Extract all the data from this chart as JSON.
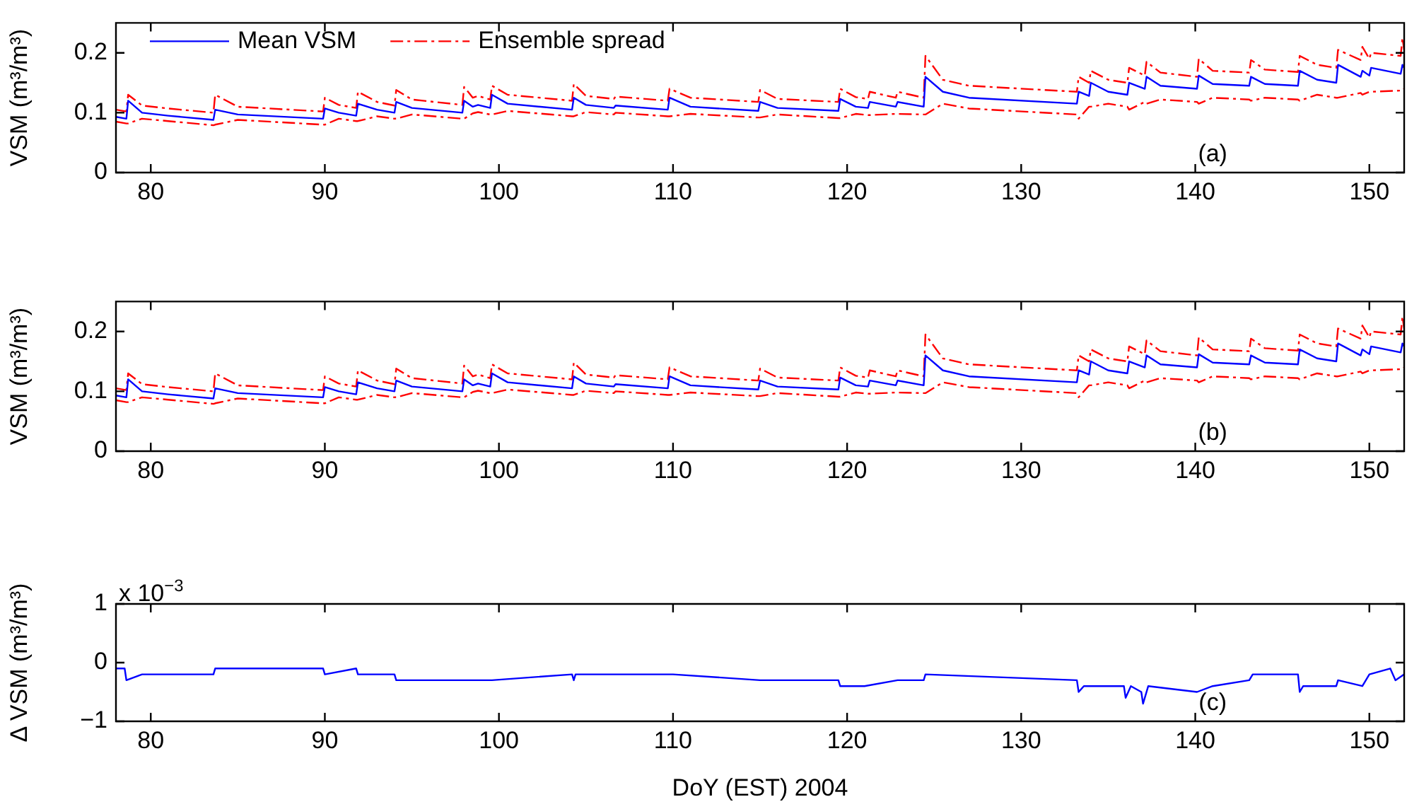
{
  "chart_data": [
    {
      "type": "line",
      "ylabel": "VSM (m³/m³)",
      "annotations": [
        "(a)"
      ],
      "legend": "top left",
      "grid": false,
      "marker": "none",
      "xlim": [
        78,
        152
      ],
      "xticks": [
        80,
        90,
        100,
        110,
        120,
        130,
        140,
        150
      ],
      "ylim": [
        0,
        0.25
      ],
      "yticks": [
        0,
        0.1,
        0.2
      ],
      "x": [
        78.0,
        78.6,
        78.7,
        79.5,
        81.0,
        83.6,
        83.7,
        85.0,
        89.9,
        90.0,
        90.8,
        91.8,
        91.9,
        93.0,
        94.0,
        94.1,
        95.0,
        97.9,
        98.0,
        98.5,
        98.8,
        99.5,
        99.6,
        100.5,
        104.2,
        104.3,
        105.0,
        106.6,
        106.7,
        109.7,
        109.8,
        111.0,
        114.9,
        115.0,
        116.0,
        119.5,
        119.6,
        120.5,
        121.2,
        121.3,
        122.8,
        122.9,
        124.4,
        124.5,
        125.5,
        127.0,
        133.2,
        133.3,
        133.9,
        134.0,
        135.0,
        136.1,
        136.2,
        137.1,
        137.2,
        138.0,
        140.1,
        140.2,
        141.0,
        143.1,
        143.2,
        144.0,
        145.9,
        146.0,
        147.0,
        148.1,
        148.2,
        149.5,
        149.6,
        150.0,
        150.1,
        151.8,
        151.9,
        152.0
      ],
      "series": [
        {
          "name": "Mean VSM",
          "color": "#0000ff",
          "line_style": "solid",
          "values": [
            0.093,
            0.09,
            0.12,
            0.1,
            0.095,
            0.088,
            0.105,
            0.097,
            0.09,
            0.107,
            0.1,
            0.095,
            0.115,
            0.105,
            0.1,
            0.118,
            0.108,
            0.1,
            0.12,
            0.11,
            0.113,
            0.108,
            0.13,
            0.115,
            0.105,
            0.125,
            0.113,
            0.108,
            0.112,
            0.105,
            0.125,
            0.11,
            0.103,
            0.118,
            0.108,
            0.103,
            0.123,
            0.11,
            0.108,
            0.118,
            0.11,
            0.118,
            0.11,
            0.16,
            0.135,
            0.125,
            0.115,
            0.135,
            0.128,
            0.15,
            0.135,
            0.13,
            0.15,
            0.14,
            0.16,
            0.145,
            0.14,
            0.162,
            0.148,
            0.145,
            0.16,
            0.148,
            0.145,
            0.17,
            0.155,
            0.15,
            0.18,
            0.16,
            0.17,
            0.162,
            0.175,
            0.165,
            0.18,
            0.175
          ]
        },
        {
          "name": "Ensemble spread",
          "color": "#ff0000",
          "line_style": "dashed",
          "values": [
            0.105,
            0.102,
            0.13,
            0.112,
            0.107,
            0.1,
            0.13,
            0.11,
            0.102,
            0.125,
            0.113,
            0.108,
            0.135,
            0.118,
            0.112,
            0.138,
            0.122,
            0.113,
            0.143,
            0.125,
            0.128,
            0.122,
            0.145,
            0.13,
            0.12,
            0.148,
            0.128,
            0.123,
            0.127,
            0.12,
            0.14,
            0.125,
            0.118,
            0.138,
            0.123,
            0.118,
            0.14,
            0.126,
            0.123,
            0.135,
            0.125,
            0.135,
            0.125,
            0.195,
            0.155,
            0.145,
            0.135,
            0.16,
            0.15,
            0.17,
            0.155,
            0.15,
            0.175,
            0.162,
            0.185,
            0.167,
            0.16,
            0.19,
            0.17,
            0.167,
            0.188,
            0.172,
            0.168,
            0.195,
            0.18,
            0.175,
            0.205,
            0.188,
            0.21,
            0.19,
            0.2,
            0.195,
            0.225,
            0.205
          ]
        },
        {
          "color": "#ff0000",
          "line_style": "dashed",
          "values": [
            0.085,
            0.082,
            0.082,
            0.09,
            0.086,
            0.079,
            0.08,
            0.088,
            0.08,
            0.08,
            0.09,
            0.086,
            0.086,
            0.094,
            0.09,
            0.09,
            0.097,
            0.09,
            0.09,
            0.099,
            0.101,
            0.097,
            0.097,
            0.103,
            0.094,
            0.094,
            0.101,
            0.097,
            0.1,
            0.094,
            0.094,
            0.098,
            0.092,
            0.092,
            0.097,
            0.091,
            0.091,
            0.098,
            0.096,
            0.096,
            0.098,
            0.098,
            0.097,
            0.097,
            0.115,
            0.107,
            0.097,
            0.09,
            0.11,
            0.11,
            0.115,
            0.11,
            0.105,
            0.118,
            0.115,
            0.122,
            0.118,
            0.115,
            0.125,
            0.122,
            0.12,
            0.125,
            0.122,
            0.12,
            0.13,
            0.125,
            0.125,
            0.133,
            0.13,
            0.135,
            0.135,
            0.137,
            0.137,
            0.14
          ]
        }
      ]
    },
    {
      "type": "line",
      "ylabel": "VSM (m³/m³)",
      "annotations": [
        "(b)"
      ],
      "grid": false,
      "marker": "none",
      "xlim": [
        78,
        152
      ],
      "xticks": [
        80,
        90,
        100,
        110,
        120,
        130,
        140,
        150
      ],
      "ylim": [
        0,
        0.25
      ],
      "yticks": [
        0,
        0.1,
        0.2
      ],
      "x": [
        78.0,
        78.6,
        78.7,
        79.5,
        81.0,
        83.6,
        83.7,
        85.0,
        89.9,
        90.0,
        90.8,
        91.8,
        91.9,
        93.0,
        94.0,
        94.1,
        95.0,
        97.9,
        98.0,
        98.5,
        98.8,
        99.5,
        99.6,
        100.5,
        104.2,
        104.3,
        105.0,
        106.6,
        106.7,
        109.7,
        109.8,
        111.0,
        114.9,
        115.0,
        116.0,
        119.5,
        119.6,
        120.5,
        121.2,
        121.3,
        122.8,
        122.9,
        124.4,
        124.5,
        125.5,
        127.0,
        133.2,
        133.3,
        133.9,
        134.0,
        135.0,
        136.1,
        136.2,
        137.1,
        137.2,
        138.0,
        140.1,
        140.2,
        141.0,
        143.1,
        143.2,
        144.0,
        145.9,
        146.0,
        147.0,
        148.1,
        148.2,
        149.5,
        149.6,
        150.0,
        150.1,
        151.8,
        151.9,
        152.0
      ],
      "series": [
        {
          "color": "#0000ff",
          "line_style": "solid",
          "values": [
            0.093,
            0.09,
            0.12,
            0.1,
            0.095,
            0.088,
            0.105,
            0.097,
            0.09,
            0.107,
            0.1,
            0.095,
            0.115,
            0.105,
            0.1,
            0.118,
            0.108,
            0.1,
            0.12,
            0.11,
            0.113,
            0.108,
            0.13,
            0.115,
            0.105,
            0.125,
            0.113,
            0.108,
            0.112,
            0.105,
            0.125,
            0.11,
            0.103,
            0.118,
            0.108,
            0.103,
            0.123,
            0.11,
            0.108,
            0.118,
            0.11,
            0.118,
            0.11,
            0.16,
            0.135,
            0.125,
            0.115,
            0.135,
            0.128,
            0.15,
            0.135,
            0.13,
            0.15,
            0.14,
            0.16,
            0.145,
            0.14,
            0.162,
            0.148,
            0.145,
            0.16,
            0.148,
            0.145,
            0.17,
            0.155,
            0.15,
            0.18,
            0.16,
            0.17,
            0.162,
            0.175,
            0.165,
            0.18,
            0.175
          ]
        },
        {
          "color": "#ff0000",
          "line_style": "dashed",
          "values": [
            0.105,
            0.102,
            0.13,
            0.112,
            0.107,
            0.1,
            0.13,
            0.11,
            0.102,
            0.125,
            0.113,
            0.108,
            0.135,
            0.118,
            0.112,
            0.138,
            0.122,
            0.113,
            0.143,
            0.125,
            0.128,
            0.122,
            0.145,
            0.13,
            0.12,
            0.148,
            0.128,
            0.123,
            0.127,
            0.12,
            0.14,
            0.125,
            0.118,
            0.138,
            0.123,
            0.118,
            0.14,
            0.126,
            0.123,
            0.135,
            0.125,
            0.135,
            0.125,
            0.195,
            0.155,
            0.145,
            0.135,
            0.16,
            0.15,
            0.17,
            0.155,
            0.15,
            0.175,
            0.162,
            0.185,
            0.167,
            0.16,
            0.19,
            0.17,
            0.167,
            0.188,
            0.172,
            0.168,
            0.195,
            0.18,
            0.175,
            0.205,
            0.188,
            0.21,
            0.19,
            0.2,
            0.195,
            0.225,
            0.205
          ]
        },
        {
          "color": "#ff0000",
          "line_style": "dashed",
          "values": [
            0.085,
            0.082,
            0.082,
            0.09,
            0.086,
            0.079,
            0.08,
            0.088,
            0.08,
            0.08,
            0.09,
            0.086,
            0.086,
            0.094,
            0.09,
            0.09,
            0.097,
            0.09,
            0.09,
            0.099,
            0.101,
            0.097,
            0.097,
            0.103,
            0.094,
            0.094,
            0.101,
            0.097,
            0.1,
            0.094,
            0.094,
            0.098,
            0.092,
            0.092,
            0.097,
            0.091,
            0.091,
            0.098,
            0.096,
            0.096,
            0.098,
            0.098,
            0.097,
            0.097,
            0.115,
            0.107,
            0.097,
            0.09,
            0.11,
            0.11,
            0.115,
            0.11,
            0.105,
            0.118,
            0.115,
            0.122,
            0.118,
            0.115,
            0.125,
            0.122,
            0.12,
            0.125,
            0.122,
            0.12,
            0.13,
            0.125,
            0.125,
            0.133,
            0.13,
            0.135,
            0.135,
            0.137,
            0.137,
            0.14
          ]
        }
      ]
    },
    {
      "type": "line",
      "ylabel": "Δ VSM (m³/m³)",
      "xlabel": "DoY (EST) 2004",
      "annotations": [
        "x 10$^{−3}$",
        "(c)"
      ],
      "grid": false,
      "marker": "none",
      "xlim": [
        78,
        152
      ],
      "xticks": [
        80,
        90,
        100,
        110,
        120,
        130,
        140,
        150
      ],
      "ylim": [
        -1,
        1
      ],
      "yticks": [
        {
          "value": -1,
          "label": "−1"
        },
        0,
        1
      ],
      "x": [
        78.0,
        78.5,
        78.6,
        79.5,
        81.0,
        83.6,
        83.7,
        89.9,
        90.0,
        91.8,
        91.9,
        94.0,
        94.1,
        98.0,
        98.1,
        99.5,
        99.6,
        104.2,
        104.3,
        104.4,
        110.0,
        115.0,
        119.5,
        119.6,
        121.0,
        122.9,
        124.4,
        124.5,
        133.2,
        133.3,
        133.6,
        135.9,
        136.0,
        136.3,
        136.9,
        137.0,
        137.3,
        140.1,
        141.0,
        143.1,
        143.3,
        145.9,
        146.0,
        146.2,
        148.1,
        148.2,
        149.6,
        150.0,
        151.2,
        151.5,
        152.0
      ],
      "series": [
        {
          "color": "#0000ff",
          "line_style": "solid",
          "values": [
            -0.1,
            -0.1,
            -0.3,
            -0.2,
            -0.2,
            -0.2,
            -0.1,
            -0.1,
            -0.2,
            -0.1,
            -0.2,
            -0.2,
            -0.3,
            -0.3,
            -0.3,
            -0.3,
            -0.3,
            -0.2,
            -0.3,
            -0.2,
            -0.2,
            -0.3,
            -0.3,
            -0.4,
            -0.4,
            -0.3,
            -0.3,
            -0.2,
            -0.3,
            -0.5,
            -0.4,
            -0.4,
            -0.6,
            -0.4,
            -0.5,
            -0.7,
            -0.4,
            -0.5,
            -0.4,
            -0.3,
            -0.2,
            -0.2,
            -0.5,
            -0.4,
            -0.4,
            -0.3,
            -0.4,
            -0.2,
            -0.1,
            -0.3,
            -0.2
          ]
        }
      ]
    }
  ]
}
